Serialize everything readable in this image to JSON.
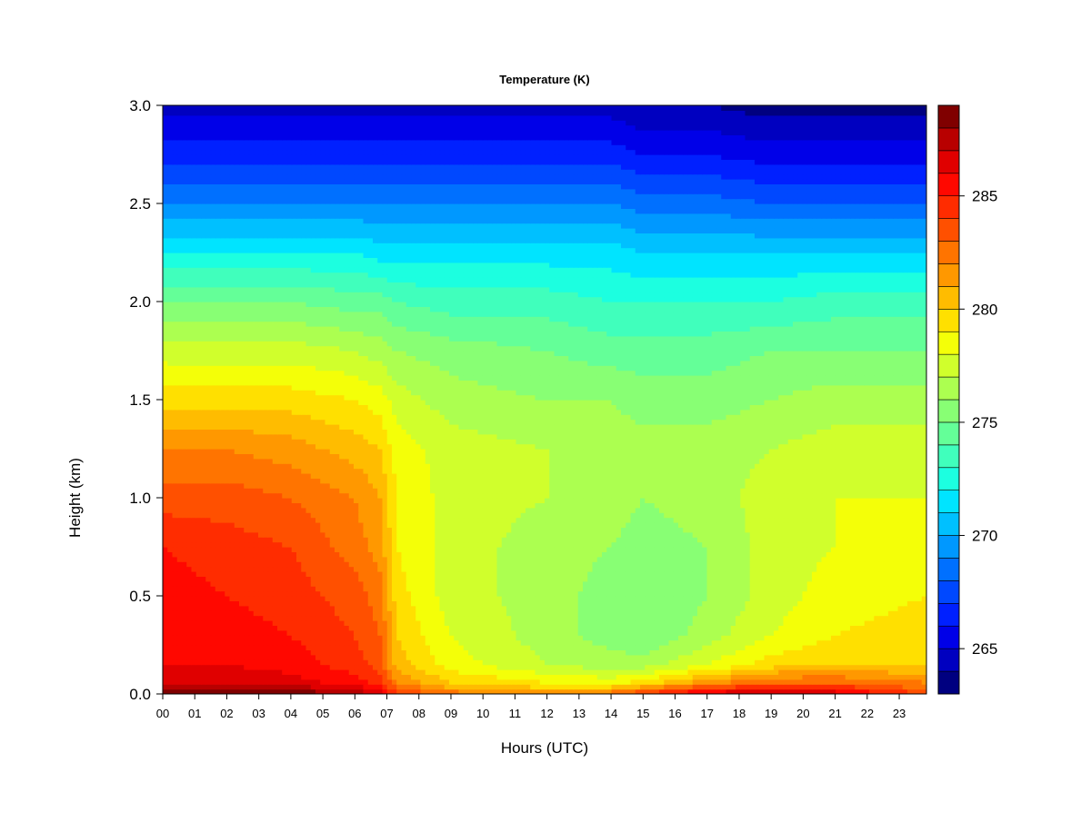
{
  "chart_data": {
    "type": "heatmap",
    "title": "Temperature (K)",
    "xlabel": "Hours (UTC)",
    "ylabel": "Height (km)",
    "x_ticks": [
      "00",
      "01",
      "02",
      "03",
      "04",
      "05",
      "06",
      "07",
      "08",
      "09",
      "10",
      "11",
      "12",
      "13",
      "14",
      "15",
      "16",
      "17",
      "18",
      "19",
      "20",
      "21",
      "22",
      "23"
    ],
    "xlim": [
      0,
      23.85
    ],
    "y_ticks": [
      "0.0",
      "0.5",
      "1.0",
      "1.5",
      "2.0",
      "2.5",
      "3.0"
    ],
    "ylim": [
      0,
      3.0
    ],
    "colorbar": {
      "ticks": [
        "265",
        "270",
        "275",
        "280",
        "285"
      ],
      "range": [
        263,
        289
      ],
      "levels": 26,
      "colors": [
        "#000080",
        "#0000c0",
        "#0000e8",
        "#0020ff",
        "#0048ff",
        "#0070ff",
        "#0098ff",
        "#00c0ff",
        "#00e4ff",
        "#1cffe0",
        "#40ffbc",
        "#64ff98",
        "#88ff74",
        "#acff50",
        "#d0ff2c",
        "#f4ff08",
        "#ffe000",
        "#ffbc00",
        "#ff9800",
        "#ff7400",
        "#ff5000",
        "#ff2c00",
        "#ff0800",
        "#e00000",
        "#b80000",
        "#800000"
      ]
    },
    "data": {
      "hours": [
        0,
        2,
        4,
        6,
        6.8,
        7.3,
        9,
        12,
        14,
        15,
        17,
        19,
        21,
        23.85
      ],
      "heights": [
        0.0,
        0.02,
        0.06,
        0.15,
        0.3,
        0.5,
        0.75,
        1.0,
        1.25,
        1.5,
        1.75,
        2.0,
        2.25,
        2.5,
        2.75,
        3.0
      ],
      "temperature_K": [
        [
          289,
          289,
          289,
          288,
          287,
          284.5,
          283,
          282.5,
          283.5,
          285,
          287,
          287.5,
          287,
          284
        ],
        [
          288,
          288,
          288,
          287,
          286,
          283.5,
          281.5,
          280.5,
          281,
          282.5,
          285,
          286,
          285.5,
          283
        ],
        [
          287,
          287,
          286.5,
          285.5,
          284.5,
          282,
          280,
          279,
          278.5,
          279.5,
          281.5,
          283,
          283,
          282
        ],
        [
          286,
          286,
          285.5,
          284.5,
          283.5,
          280.5,
          278.5,
          277,
          276.5,
          276.5,
          278,
          279.5,
          280,
          280
        ],
        [
          285.5,
          285.5,
          285,
          284,
          283,
          280,
          278,
          276.5,
          275.5,
          275,
          276.5,
          278,
          279,
          279.5
        ],
        [
          285.5,
          285,
          284.5,
          283.5,
          282.5,
          279.5,
          277.5,
          276.5,
          275.5,
          275,
          276,
          277.5,
          278.5,
          279
        ],
        [
          285,
          284.5,
          284,
          282.5,
          281.5,
          279,
          277.5,
          276.5,
          276,
          275.5,
          276,
          277.5,
          278,
          278.5
        ],
        [
          283.5,
          283.5,
          283,
          282,
          281,
          279,
          277.5,
          277,
          276.5,
          276,
          276.5,
          277.5,
          278,
          278
        ],
        [
          282,
          282,
          281.5,
          280.5,
          280,
          278.5,
          277.5,
          277,
          276.5,
          276.5,
          276.5,
          277,
          277.5,
          277.5
        ],
        [
          279.5,
          279.5,
          279.5,
          279,
          278.5,
          277.5,
          276.5,
          276,
          276,
          275.5,
          275.5,
          276,
          276.5,
          276.5
        ],
        [
          277.5,
          277.5,
          277.5,
          277,
          276.5,
          276,
          275.5,
          275,
          274.5,
          274.5,
          274.5,
          275,
          275,
          275
        ],
        [
          275,
          275,
          275,
          274.5,
          274.5,
          274,
          273.5,
          273.5,
          273,
          273,
          273,
          273,
          273.5,
          273.5
        ],
        [
          272,
          272,
          272,
          272,
          271.5,
          271.5,
          271.5,
          271.5,
          271.5,
          271,
          271,
          271,
          271,
          271
        ],
        [
          269,
          269,
          269,
          269,
          269,
          269,
          269,
          269,
          269,
          268.5,
          268.5,
          268,
          268,
          268
        ],
        [
          266.5,
          266.5,
          266.5,
          266.5,
          266.5,
          266.5,
          266.5,
          266.5,
          266.5,
          266,
          266,
          265.5,
          265.5,
          265.5
        ],
        [
          264.5,
          264.5,
          264.5,
          264.5,
          264.5,
          264.5,
          264.5,
          264.5,
          264.5,
          264,
          264,
          263.5,
          263.5,
          263.5
        ]
      ]
    },
    "grid": false,
    "legend": "colorbar-right"
  }
}
